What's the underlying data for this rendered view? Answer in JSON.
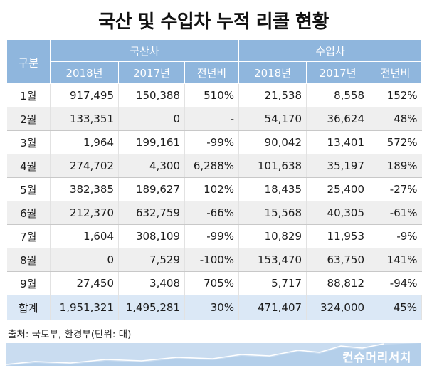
{
  "title": "국산 및 수입차 누적 리콜 현황",
  "table": {
    "corner": "구분",
    "groups": [
      "국산차",
      "수입차"
    ],
    "subheaders": [
      "2018년",
      "2017년",
      "전년비",
      "2018년",
      "2017년",
      "전년비"
    ],
    "rows": [
      [
        "1월",
        "917,495",
        "150,388",
        "510%",
        "21,538",
        "8,558",
        "152%"
      ],
      [
        "2월",
        "133,351",
        "0",
        "-",
        "54,170",
        "36,624",
        "48%"
      ],
      [
        "3월",
        "1,964",
        "199,161",
        "-99%",
        "90,042",
        "13,401",
        "572%"
      ],
      [
        "4월",
        "274,702",
        "4,300",
        "6,288%",
        "101,638",
        "35,197",
        "189%"
      ],
      [
        "5월",
        "382,385",
        "189,627",
        "102%",
        "18,435",
        "25,400",
        "-27%"
      ],
      [
        "6월",
        "212,370",
        "632,759",
        "-66%",
        "15,568",
        "40,305",
        "-61%"
      ],
      [
        "7월",
        "1,604",
        "308,109",
        "-99%",
        "10,829",
        "11,953",
        "-9%"
      ],
      [
        "8월",
        "0",
        "7,529",
        "-100%",
        "153,470",
        "63,750",
        "141%"
      ],
      [
        "9월",
        "27,450",
        "3,408",
        "705%",
        "5,717",
        "88,812",
        "-94%"
      ]
    ],
    "total": [
      "합계",
      "1,951,321",
      "1,495,281",
      "30%",
      "471,407",
      "324,000",
      "45%"
    ]
  },
  "source": "출처: 국토부, 환경부(단위: 대)",
  "brand": "컨슈머리서치",
  "colors": {
    "header": "#8fb6dd",
    "total_row": "#dbe8f6",
    "stripe": "#efefef",
    "footer": "#c9dcf0"
  }
}
